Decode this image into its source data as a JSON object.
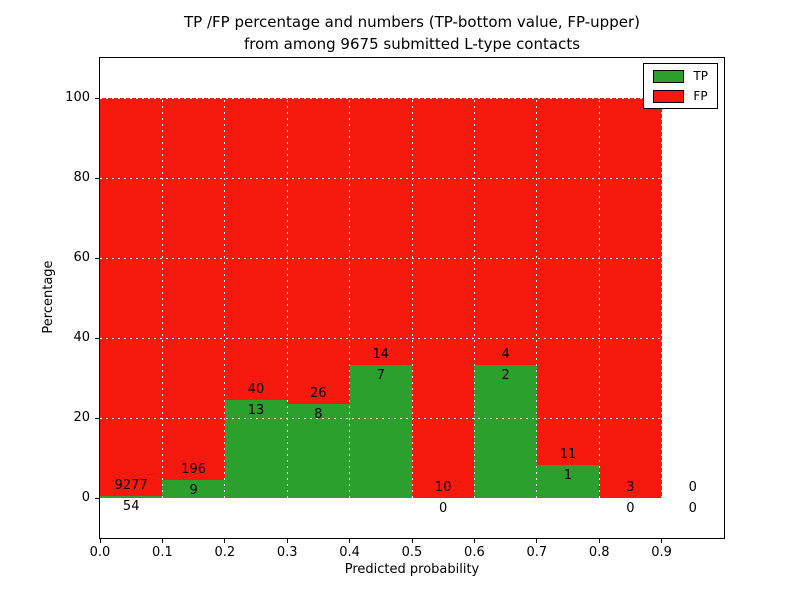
{
  "chart_data": {
    "type": "bar",
    "subtype": "stacked-percentage-histogram",
    "title": "TP /FP percentage and numbers (TP-bottom value, FP-upper)\nfrom among 9675 submitted L-type contacts",
    "title_line1": "TP /FP percentage and numbers (TP-bottom value, FP-upper)",
    "title_line2": "from among 9675 submitted L-type contacts",
    "xlabel": "Predicted probability",
    "ylabel": "Percentage",
    "xlim": [
      0.0,
      1.0
    ],
    "ylim": [
      -10,
      110
    ],
    "xticks": [
      "0.0",
      "0.1",
      "0.2",
      "0.3",
      "0.4",
      "0.5",
      "0.6",
      "0.7",
      "0.8",
      "0.9"
    ],
    "yticks": [
      0,
      20,
      40,
      60,
      80,
      100
    ],
    "grid": true,
    "grid_color": "#ffffff",
    "legend_position": "upper right",
    "colors": {
      "tp": "#2ca02c",
      "fp": "#f8190e"
    },
    "legend": [
      {
        "label": "TP",
        "color_key": "tp"
      },
      {
        "label": "FP",
        "color_key": "fp"
      }
    ],
    "bins": [
      {
        "x0": 0.0,
        "x1": 0.1,
        "tp": 54,
        "fp": 9277
      },
      {
        "x0": 0.1,
        "x1": 0.2,
        "tp": 9,
        "fp": 196
      },
      {
        "x0": 0.2,
        "x1": 0.3,
        "tp": 13,
        "fp": 40
      },
      {
        "x0": 0.3,
        "x1": 0.4,
        "tp": 8,
        "fp": 26
      },
      {
        "x0": 0.4,
        "x1": 0.5,
        "tp": 7,
        "fp": 14
      },
      {
        "x0": 0.5,
        "x1": 0.6,
        "tp": 0,
        "fp": 10
      },
      {
        "x0": 0.6,
        "x1": 0.7,
        "tp": 2,
        "fp": 4
      },
      {
        "x0": 0.7,
        "x1": 0.8,
        "tp": 1,
        "fp": 11
      },
      {
        "x0": 0.8,
        "x1": 0.9,
        "tp": 0,
        "fp": 3
      },
      {
        "x0": 0.9,
        "x1": 1.0,
        "tp": 0,
        "fp": 0
      }
    ]
  }
}
